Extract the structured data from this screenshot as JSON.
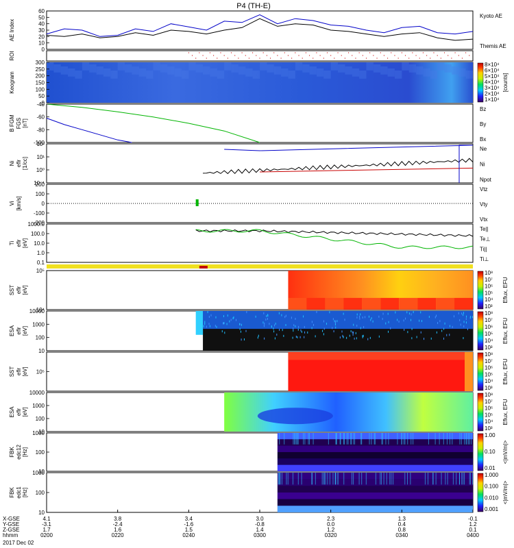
{
  "chart_data": {
    "title": "P4 (TH-E)",
    "date_label": "2017 Dec 02",
    "type": "line",
    "x_axis": {
      "rows": [
        {
          "label": "X-GSE",
          "ticks": [
            "4.1",
            "3.8",
            "3.4",
            "3.0",
            "2.3",
            "1.3",
            "-0.1"
          ]
        },
        {
          "label": "Y-GSE",
          "ticks": [
            "-3.1",
            "-2.4",
            "-1.6",
            "-0.8",
            "0.0",
            "0.4",
            "1.2"
          ]
        },
        {
          "label": "Z-GSE",
          "ticks": [
            "1.7",
            "1.6",
            "1.5",
            "1.4",
            "1.2",
            "0.8",
            "0.1"
          ]
        },
        {
          "label": "hhmm",
          "ticks": [
            "0200",
            "0220",
            "0240",
            "0300",
            "0320",
            "0340",
            "0400"
          ]
        }
      ],
      "time_minutes": [
        0,
        20,
        40,
        60,
        80,
        100,
        120
      ]
    },
    "panels": [
      {
        "id": "ae",
        "ylabel": "AE Index",
        "yticks": [
          "0",
          "10",
          "20",
          "30",
          "40",
          "50",
          "60"
        ],
        "ylim": [
          0,
          60
        ],
        "legend": [
          "Kyoto AE",
          "Themis AE"
        ],
        "colors": [
          "#0000c8",
          "#000000"
        ],
        "series": [
          {
            "name": "Kyoto AE",
            "x": [
              0,
              5,
              10,
              15,
              20,
              25,
              30,
              35,
              40,
              45,
              50,
              55,
              60,
              65,
              70,
              75,
              80,
              85,
              90,
              95,
              100,
              105,
              110,
              115,
              120
            ],
            "y": [
              24,
              32,
              30,
              20,
              22,
              32,
              28,
              40,
              35,
              30,
              44,
              42,
              54,
              40,
              48,
              45,
              38,
              36,
              30,
              26,
              34,
              36,
              26,
              24,
              28
            ]
          },
          {
            "name": "Themis AE",
            "x": [
              0,
              5,
              10,
              15,
              20,
              25,
              30,
              35,
              40,
              45,
              50,
              55,
              60,
              65,
              70,
              75,
              80,
              85,
              90,
              95,
              100,
              105,
              110,
              115,
              120
            ],
            "y": [
              22,
              20,
              24,
              18,
              20,
              26,
              22,
              30,
              28,
              24,
              30,
              34,
              48,
              36,
              40,
              38,
              30,
              28,
              24,
              20,
              24,
              26,
              18,
              14,
              16
            ]
          }
        ]
      },
      {
        "id": "roi",
        "ylabel": "ROI"
      },
      {
        "id": "keogram",
        "ylabel": "Keogram",
        "yticks": [
          "0",
          "50",
          "100",
          "150",
          "200",
          "250",
          "300"
        ],
        "colorbar": [
          "8×10⁴",
          "6×10⁴",
          "5×10⁴",
          "4×10⁴",
          "3×10⁴",
          "2×10⁴",
          "1×10⁴"
        ],
        "cbar_unit": "[counts]"
      },
      {
        "id": "bfgm",
        "ylabel": "B FGM",
        "sub": [
          "FGS",
          "[nT]"
        ],
        "yticks": [
          "-40",
          "-60",
          "-80",
          "-100"
        ],
        "ylim": [
          -100,
          -40
        ],
        "legend": [
          "Bz",
          "By",
          "Bx"
        ],
        "colors": [
          "#c80000",
          "#00b400",
          "#0000c8"
        ],
        "series": [
          {
            "name": "By",
            "x": [
              0,
              10,
              20,
              30,
              40,
              50,
              60
            ],
            "y": [
              -40,
              -45,
              -52,
              -60,
              -70,
              -82,
              -100
            ]
          },
          {
            "name": "Bx",
            "x": [
              0,
              5,
              10,
              15,
              20,
              24
            ],
            "y": [
              -62,
              -72,
              -80,
              -88,
              -96,
              -100
            ]
          }
        ]
      },
      {
        "id": "density",
        "ylabel": "Ni",
        "sub": [
          "eflr",
          "[1/cc]"
        ],
        "yticks": [
          "10⁻¹",
          "10⁰",
          "10¹",
          "10²"
        ],
        "legend": [
          "Ne",
          "Ni",
          "Npot"
        ],
        "colors": [
          "#c80000",
          "#000000",
          "#0000c8"
        ]
      },
      {
        "id": "velocity",
        "ylabel": "Vi",
        "sub": [
          "[km/s]"
        ],
        "yticks": [
          "200",
          "100",
          "0",
          "-100",
          "-200"
        ],
        "ylim": [
          -200,
          200
        ],
        "legend": [
          "Vtz",
          "Vty",
          "Vtx"
        ],
        "colors": [
          "#c80000",
          "#00b400",
          "#0000c8"
        ]
      },
      {
        "id": "temp",
        "ylabel": "Ti",
        "sub": [
          "eflr",
          "[eV]"
        ],
        "yticks": [
          "1000.0",
          "100.0",
          "10.0",
          "1.0",
          "0.1"
        ],
        "legend": [
          "Te||",
          "Te⊥",
          "Ti||",
          "Ti⊥"
        ],
        "colors": [
          "#000000",
          "#c80000",
          "#00b400",
          "#0000c8"
        ]
      },
      {
        "id": "sst_e",
        "ylabel": "SST",
        "sub": [
          "eflr",
          "[eV]"
        ],
        "yticks": [
          "10⁵",
          "10⁴"
        ],
        "colorbar": [
          "10⁸",
          "10⁷",
          "10⁶",
          "10⁵",
          "10⁴",
          "10³"
        ],
        "cbar_unit": "Eflux, EFU"
      },
      {
        "id": "esa_e",
        "ylabel": "ESA",
        "sub": [
          "eflr",
          "[eV]"
        ],
        "yticks": [
          "10000",
          "1000",
          "100",
          "10"
        ],
        "colorbar": [
          "10⁸",
          "10⁷",
          "10⁶",
          "10⁵",
          "10⁴",
          "10³"
        ],
        "cbar_unit": "Eflux, EFU"
      },
      {
        "id": "sst_i",
        "ylabel": "SST",
        "sub": [
          "eflr",
          "[eV]"
        ],
        "yticks": [
          "10⁵"
        ],
        "colorbar": [
          "10⁸",
          "10⁷",
          "10⁶",
          "10⁵",
          "10⁴",
          "10³"
        ],
        "cbar_unit": "Eflux, EFU"
      },
      {
        "id": "esa_i",
        "ylabel": "ESA",
        "sub": [
          "eflr",
          "[eV]"
        ],
        "yticks": [
          "10000",
          "1000",
          "100",
          "10"
        ],
        "colorbar": [
          "10⁸",
          "10⁷",
          "10⁶",
          "10⁵",
          "10⁴",
          "10³"
        ],
        "cbar_unit": "Eflux, EFU"
      },
      {
        "id": "fbk1",
        "ylabel": "FBK",
        "sub": [
          "edc12",
          "[Hz]"
        ],
        "yticks": [
          "1000",
          "100",
          "10"
        ],
        "colorbar": [
          "1.00",
          "0.10",
          "0.01"
        ],
        "cbar_unit": "<|mV/m|>"
      },
      {
        "id": "fbk2",
        "ylabel": "FBK",
        "sub": [
          "edc1",
          "[Hz]"
        ],
        "yticks": [
          "1000",
          "100",
          "10"
        ],
        "colorbar": [
          "1.000",
          "0.100",
          "0.010",
          "0.001"
        ],
        "cbar_unit": "<|mV/m|>"
      }
    ]
  }
}
